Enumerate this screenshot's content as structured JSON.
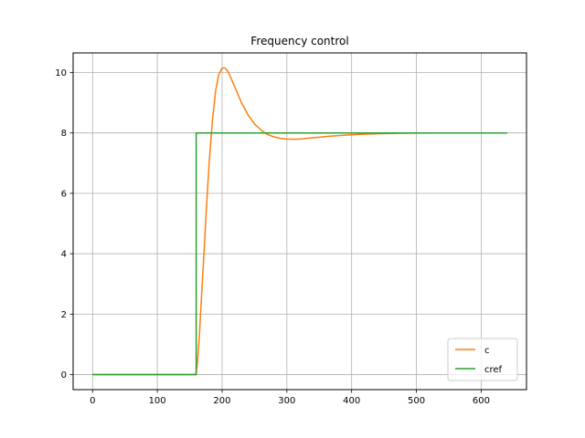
{
  "chart_data": {
    "type": "line",
    "title": "Frequency control",
    "xlabel": "",
    "ylabel": "",
    "xlim": [
      -30,
      670
    ],
    "ylim": [
      -0.5,
      10.65
    ],
    "xticks": [
      0,
      100,
      200,
      300,
      400,
      500,
      600
    ],
    "yticks": [
      0,
      2,
      4,
      6,
      8,
      10
    ],
    "grid": true,
    "legend_position": "lower right",
    "series": [
      {
        "name": "c",
        "color": "#ff7f0e",
        "x": [
          0,
          100,
          158,
          160,
          162,
          165,
          168,
          172,
          176,
          180,
          185,
          190,
          195,
          200,
          205,
          210,
          215,
          220,
          230,
          240,
          250,
          260,
          270,
          280,
          290,
          300,
          310,
          320,
          330,
          340,
          350,
          360,
          380,
          400,
          420,
          450,
          480,
          520,
          560,
          600,
          640
        ],
        "y": [
          0,
          0,
          0,
          0.05,
          0.4,
          1.3,
          2.5,
          4.0,
          5.6,
          7.0,
          8.4,
          9.4,
          9.95,
          10.15,
          10.15,
          10.0,
          9.75,
          9.5,
          9.0,
          8.6,
          8.3,
          8.1,
          7.95,
          7.87,
          7.82,
          7.8,
          7.79,
          7.8,
          7.82,
          7.84,
          7.86,
          7.88,
          7.91,
          7.94,
          7.96,
          7.98,
          7.99,
          8.0,
          8.0,
          8.0,
          8.0
        ]
      },
      {
        "name": "cref",
        "color": "#2ca02c",
        "x": [
          0,
          160,
          160,
          640
        ],
        "y": [
          0,
          0,
          8,
          8
        ]
      }
    ]
  }
}
